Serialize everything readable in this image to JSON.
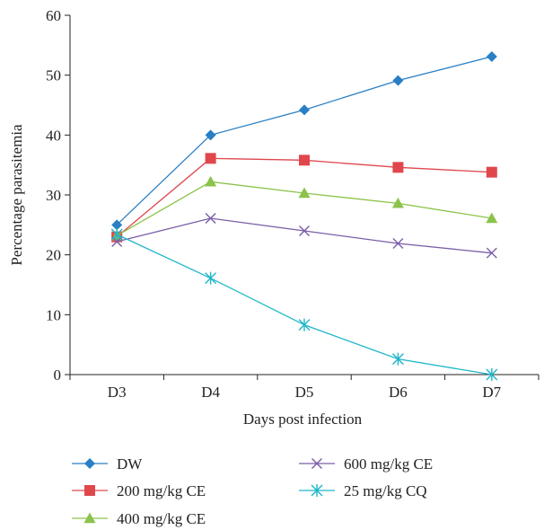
{
  "chart_data": {
    "type": "line",
    "title": "",
    "xlabel": "Days post infection",
    "ylabel": "Percentage parasitemia",
    "categories": [
      "D3",
      "D4",
      "D5",
      "D6",
      "D7"
    ],
    "ylim": [
      0,
      60
    ],
    "yticks": [
      0,
      10,
      20,
      30,
      40,
      50,
      60
    ],
    "grid": false,
    "legend_position": "bottom",
    "series": [
      {
        "name": "DW",
        "values": [
          25,
          40,
          44.2,
          49.1,
          53.1
        ],
        "color": "#2a7fc4",
        "marker": "diamond"
      },
      {
        "name": "200 mg/kg CE",
        "values": [
          23,
          36.1,
          35.8,
          34.6,
          33.8
        ],
        "color": "#e0474c",
        "marker": "square"
      },
      {
        "name": "400 mg/kg CE",
        "values": [
          23.2,
          32.2,
          30.3,
          28.6,
          26.1
        ],
        "color": "#8bc34a",
        "marker": "triangle"
      },
      {
        "name": "600 mg/kg CE",
        "values": [
          22.2,
          26.1,
          24,
          21.9,
          20.3
        ],
        "color": "#7b5ea7",
        "marker": "x"
      },
      {
        "name": "25 mg/kg CQ",
        "values": [
          23.4,
          16.1,
          8.3,
          2.6,
          0
        ],
        "color": "#1fb6c9",
        "marker": "asterisk"
      }
    ]
  }
}
